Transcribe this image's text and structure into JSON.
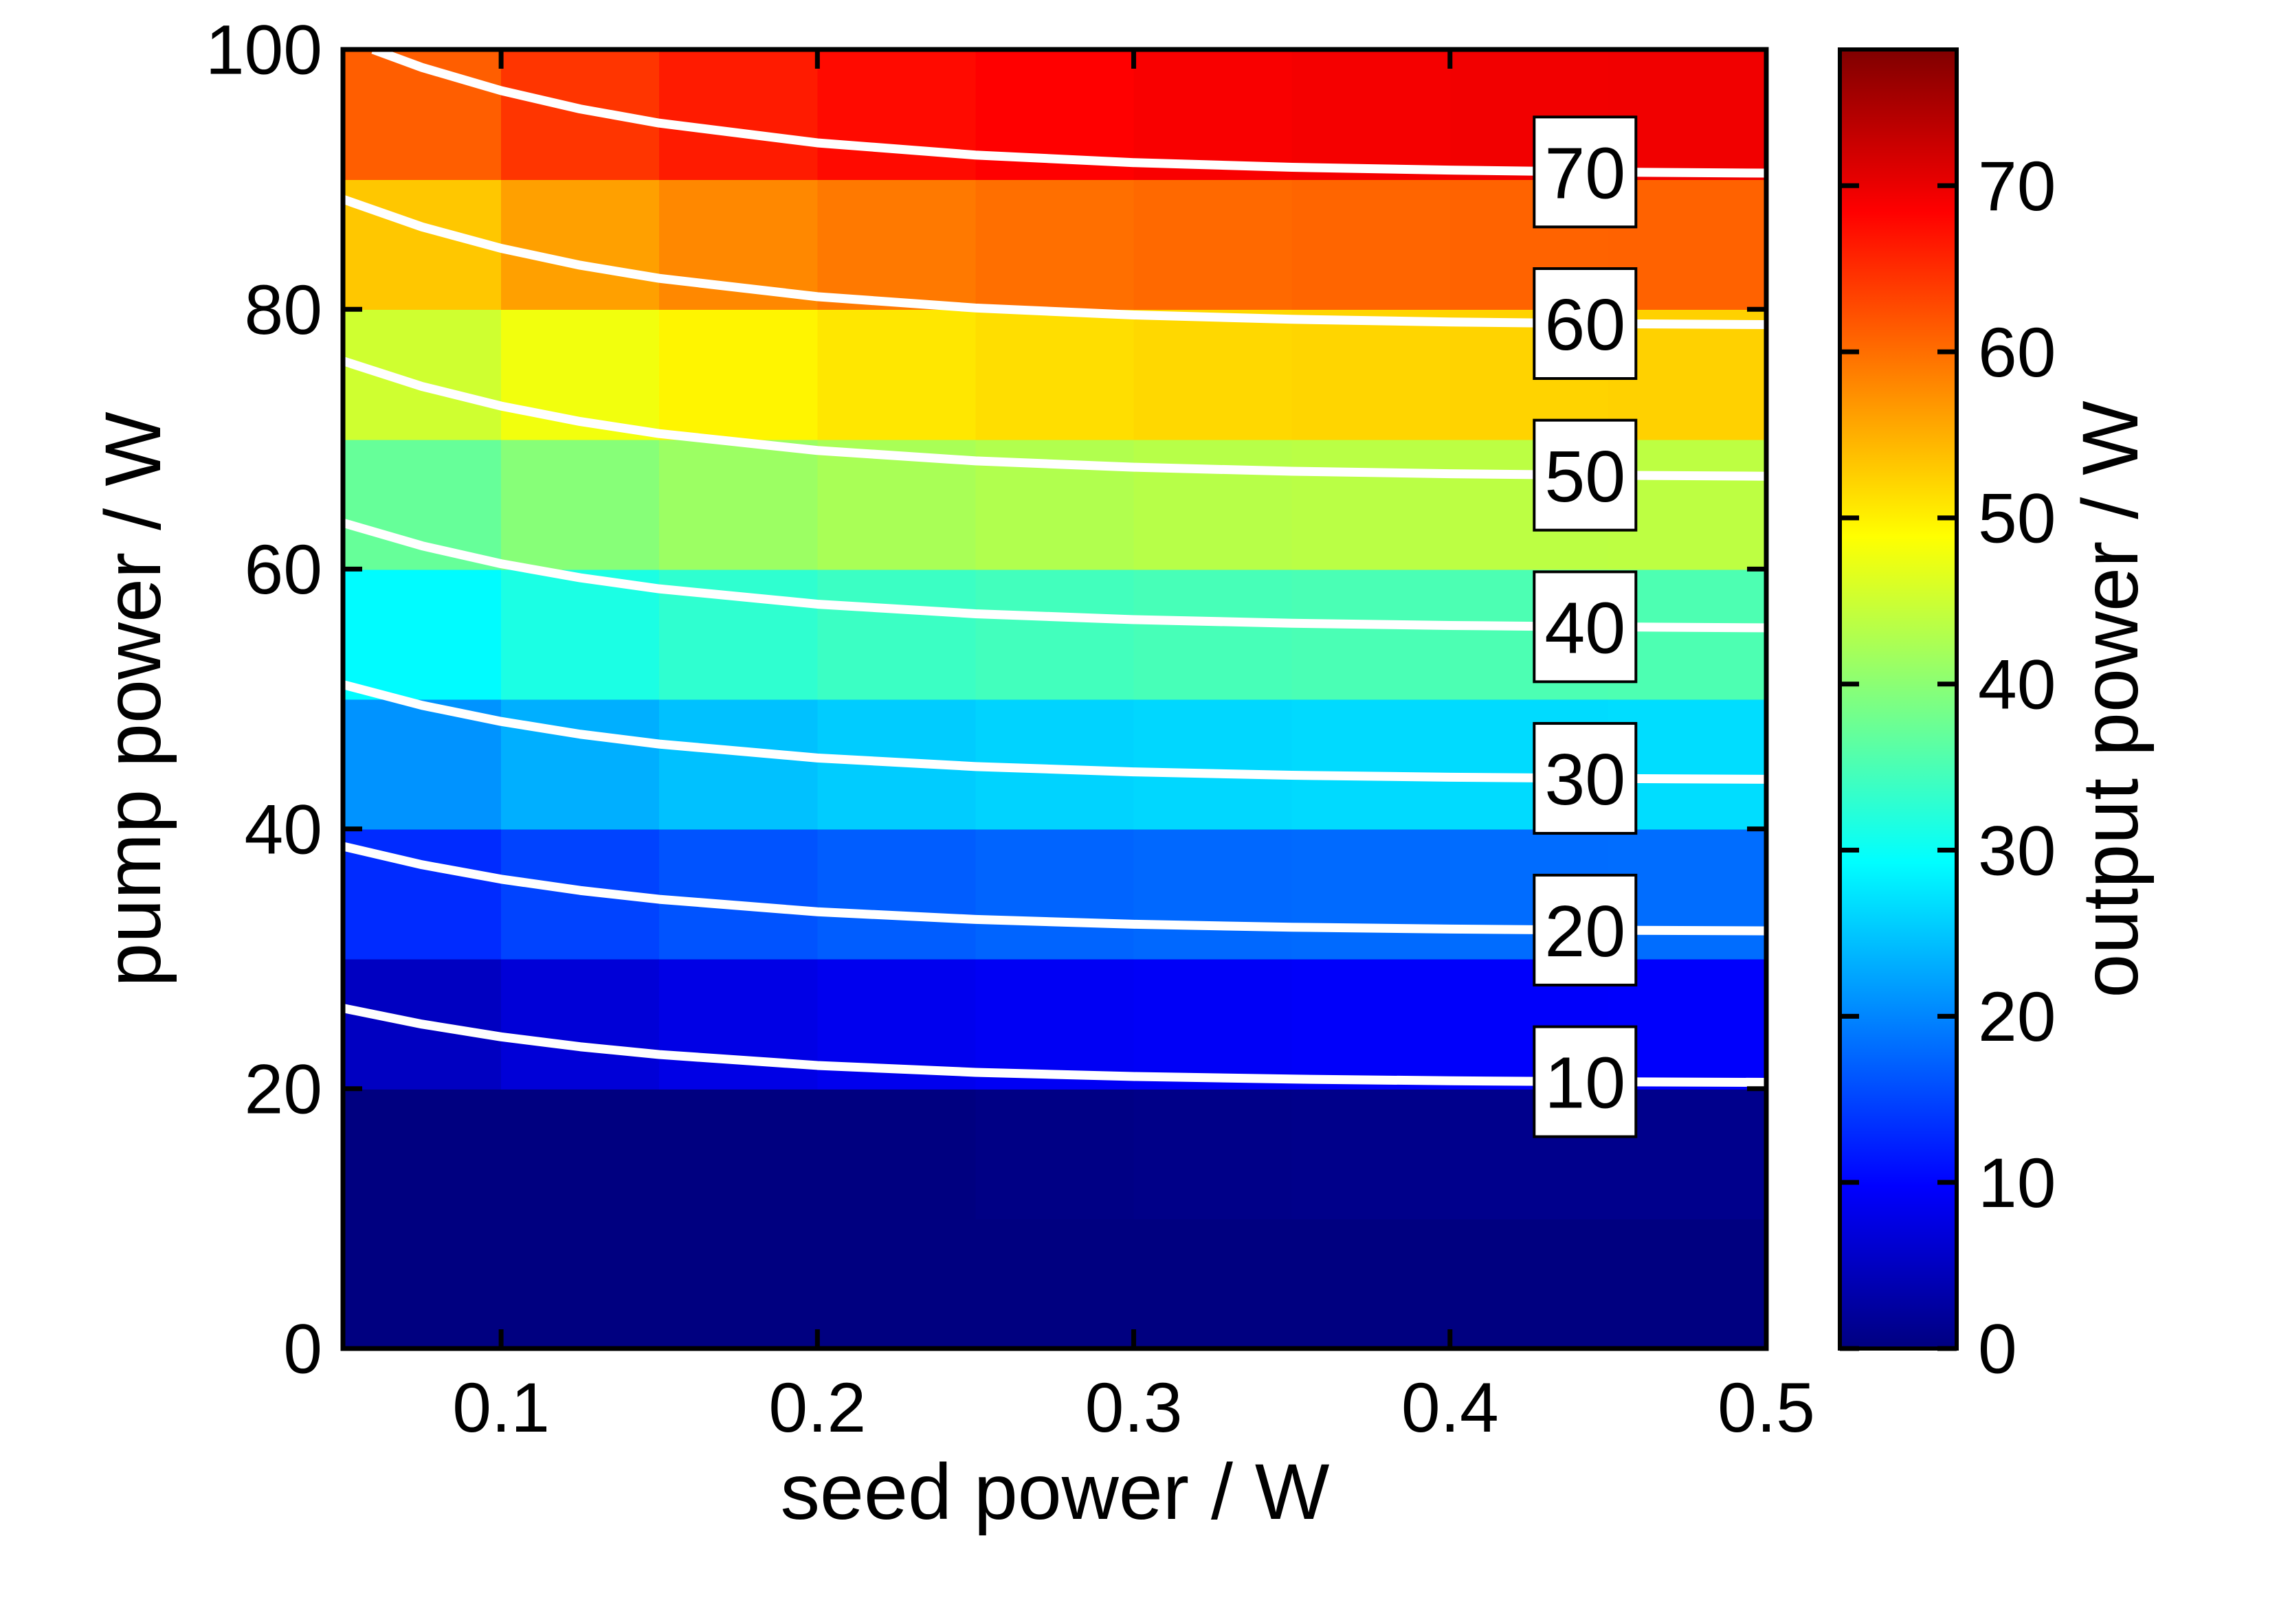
{
  "chart_data": {
    "type": "heatmap",
    "xlabel": "seed power / W",
    "ylabel": "pump power / W",
    "colorbar_label": "output power / W",
    "xlim": [
      0.05,
      0.5
    ],
    "ylim": [
      0,
      100
    ],
    "xticks": [
      "0.1",
      "0.2",
      "0.3",
      "0.4",
      "0.5"
    ],
    "xtick_values": [
      0.1,
      0.2,
      0.3,
      0.4,
      0.5
    ],
    "yticks": [
      "0",
      "20",
      "40",
      "60",
      "80",
      "100"
    ],
    "ytick_values": [
      0,
      20,
      40,
      60,
      80,
      100
    ],
    "colorbar": {
      "min": 0,
      "max": 78.2,
      "ticks": [
        "0",
        "10",
        "20",
        "30",
        "40",
        "50",
        "60",
        "70"
      ],
      "tick_values": [
        0,
        10,
        20,
        30,
        40,
        50,
        60,
        70
      ]
    },
    "colormap": {
      "name": "jet",
      "positions": [
        0,
        0.125,
        0.375,
        0.625,
        0.875,
        1
      ],
      "colors": [
        "#000080",
        "#0000FF",
        "#00FFFF",
        "#FFFF00",
        "#FF0000",
        "#800000"
      ]
    },
    "grid": {
      "seed_nodes": [
        0.05,
        0.1,
        0.15,
        0.2,
        0.25,
        0.3,
        0.35,
        0.4,
        0.45
      ],
      "pump_nodes": [
        0,
        10,
        20,
        30,
        40,
        50,
        60,
        70,
        80,
        90
      ],
      "cell_seed_width": 0.05,
      "cell_pump_height": 10,
      "values": [
        [
          0,
          0,
          0,
          0,
          0,
          0,
          0,
          0,
          0
        ],
        [
          0,
          0,
          0,
          0.04,
          0.43,
          0.67,
          0.82,
          0.92,
          0.98
        ],
        [
          5.02,
          6.71,
          7.8,
          8.49,
          8.93,
          9.2,
          9.37,
          9.48,
          9.54
        ],
        [
          13.05,
          14.95,
          16.17,
          16.94,
          17.43,
          17.73,
          17.92,
          18.04,
          18.11
        ],
        [
          21.08,
          23.19,
          24.54,
          25.39,
          25.92,
          26.26,
          26.47,
          26.6,
          26.68
        ],
        [
          29.11,
          31.42,
          32.9,
          33.84,
          34.42,
          34.79,
          35.01,
          35.16,
          35.25
        ],
        [
          37.14,
          39.66,
          41.27,
          42.28,
          42.92,
          43.32,
          43.56,
          43.72,
          43.82
        ],
        [
          45.17,
          47.9,
          49.64,
          50.73,
          51.42,
          51.85,
          52.11,
          52.28,
          52.38
        ],
        [
          53.2,
          56.14,
          58.01,
          59.18,
          59.92,
          60.38,
          60.66,
          60.84,
          60.95
        ],
        [
          61.23,
          64.38,
          66.38,
          67.63,
          68.41,
          68.9,
          69.21,
          69.4,
          69.52
        ]
      ]
    },
    "contours": {
      "color": "#FFFFFF",
      "label_seed": 0.4427,
      "lines": [
        {
          "level": "10",
          "seed": [
            0.05,
            0.075,
            0.1,
            0.125,
            0.15,
            0.2,
            0.25,
            0.3,
            0.35,
            0.4,
            0.45,
            0.5
          ],
          "pump": [
            26.2,
            24.97,
            23.99,
            23.23,
            22.63,
            21.79,
            21.26,
            20.94,
            20.74,
            20.61,
            20.53,
            20.49
          ],
          "label_pump": 20.54
        },
        {
          "level": "20",
          "seed": [
            0.05,
            0.075,
            0.1,
            0.125,
            0.15,
            0.2,
            0.25,
            0.3,
            0.35,
            0.4,
            0.45,
            0.5
          ],
          "pump": [
            38.66,
            37.24,
            36.13,
            35.26,
            34.58,
            33.62,
            33.03,
            32.66,
            32.43,
            32.29,
            32.2,
            32.15
          ],
          "label_pump": 32.21
        },
        {
          "level": "30",
          "seed": [
            0.05,
            0.075,
            0.1,
            0.125,
            0.15,
            0.2,
            0.25,
            0.3,
            0.35,
            0.4,
            0.45,
            0.5
          ],
          "pump": [
            51.11,
            49.51,
            48.27,
            47.29,
            46.53,
            45.46,
            44.8,
            44.39,
            44.13,
            43.98,
            43.88,
            43.82
          ],
          "label_pump": 43.89
        },
        {
          "level": "40",
          "seed": [
            0.05,
            0.075,
            0.1,
            0.125,
            0.15,
            0.2,
            0.25,
            0.3,
            0.35,
            0.4,
            0.45,
            0.5
          ],
          "pump": [
            63.56,
            61.79,
            60.41,
            59.33,
            58.48,
            57.3,
            56.56,
            56.11,
            55.83,
            55.66,
            55.55,
            55.48
          ],
          "label_pump": 55.56
        },
        {
          "level": "50",
          "seed": [
            0.05,
            0.075,
            0.1,
            0.125,
            0.15,
            0.2,
            0.25,
            0.3,
            0.35,
            0.4,
            0.45,
            0.5
          ],
          "pump": [
            76.02,
            74.06,
            72.55,
            71.36,
            70.43,
            69.13,
            68.33,
            67.84,
            67.53,
            67.34,
            67.22,
            67.15
          ],
          "label_pump": 67.23
        },
        {
          "level": "60",
          "seed": [
            0.05,
            0.075,
            0.1,
            0.125,
            0.15,
            0.2,
            0.25,
            0.3,
            0.35,
            0.4,
            0.45,
            0.5
          ],
          "pump": [
            88.47,
            86.34,
            84.69,
            83.39,
            82.38,
            80.97,
            80.1,
            79.56,
            79.23,
            79.02,
            78.89,
            78.82
          ],
          "label_pump": 78.9
        },
        {
          "level": "70",
          "seed": [
            0.0595,
            0.075,
            0.1,
            0.125,
            0.15,
            0.2,
            0.25,
            0.3,
            0.35,
            0.4,
            0.45,
            0.5
          ],
          "pump": [
            100.0,
            98.61,
            96.83,
            95.42,
            94.33,
            92.81,
            91.87,
            91.29,
            90.93,
            90.71,
            90.56,
            90.48
          ],
          "label_pump": 90.57
        }
      ]
    }
  }
}
